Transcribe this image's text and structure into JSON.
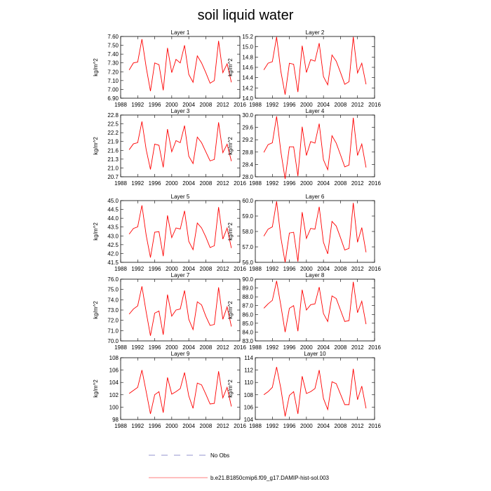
{
  "figure": {
    "title": "soil liquid water"
  },
  "legend": {
    "no_obs_label": "No Obs",
    "model_label": "b.e21.B1850cmip6.f09_g17.DAMIP-hist-sol.003",
    "model_color": "#ff0000",
    "no_obs_color": "#7070c0"
  },
  "chart_data": [
    {
      "type": "line",
      "title": "Layer 1",
      "xlabel": "",
      "ylabel": "kg/m^2",
      "xlim": [
        1988,
        2016
      ],
      "ylim": [
        6.9,
        7.6
      ],
      "xticks": [
        1988,
        1992,
        1996,
        2000,
        2004,
        2008,
        2012,
        2016
      ],
      "yticks": [
        "6.90",
        "7.00",
        "7.10",
        "7.20",
        "7.30",
        "7.40",
        "7.50",
        "7.60"
      ],
      "series": [
        {
          "color": "#ff0000",
          "x": [
            1990,
            1991,
            1992,
            1993,
            1994,
            1995,
            1996,
            1997,
            1998,
            1999,
            2000,
            2001,
            2002,
            2003,
            2004,
            2005,
            2006,
            2007,
            2008,
            2009,
            2010,
            2011,
            2012,
            2013,
            2014
          ],
          "values": [
            7.22,
            7.3,
            7.31,
            7.57,
            7.25,
            6.98,
            7.3,
            7.28,
            6.99,
            7.47,
            7.19,
            7.34,
            7.3,
            7.5,
            7.17,
            7.08,
            7.38,
            7.3,
            7.19,
            7.07,
            7.1,
            7.55,
            7.19,
            7.29,
            7.08
          ]
        }
      ]
    },
    {
      "type": "line",
      "title": "Layer 2",
      "xlabel": "",
      "ylabel": "kg/m^2",
      "xlim": [
        1988,
        2016
      ],
      "ylim": [
        14.0,
        15.2
      ],
      "xticks": [
        1988,
        1992,
        1996,
        2000,
        2004,
        2008,
        2012,
        2016
      ],
      "yticks": [
        "14.0",
        "14.2",
        "14.4",
        "14.6",
        "14.8",
        "15.0",
        "15.2"
      ],
      "series": [
        {
          "color": "#ff0000",
          "x": [
            1990,
            1991,
            1992,
            1993,
            1994,
            1995,
            1996,
            1997,
            1998,
            1999,
            2000,
            2001,
            2002,
            2003,
            2004,
            2005,
            2006,
            2007,
            2008,
            2009,
            2010,
            2011,
            2012,
            2013,
            2014
          ],
          "values": [
            14.55,
            14.68,
            14.71,
            15.19,
            14.52,
            14.07,
            14.68,
            14.66,
            14.12,
            15.02,
            14.5,
            14.75,
            14.72,
            15.07,
            14.42,
            14.26,
            14.84,
            14.72,
            14.5,
            14.27,
            14.32,
            15.19,
            14.49,
            14.68,
            14.27
          ]
        }
      ]
    },
    {
      "type": "line",
      "title": "Layer 3",
      "xlabel": "",
      "ylabel": "kg/m^2",
      "xlim": [
        1988,
        2016
      ],
      "ylim": [
        20.7,
        22.8
      ],
      "xticks": [
        1988,
        1992,
        1996,
        2000,
        2004,
        2008,
        2012,
        2016
      ],
      "yticks": [
        "20.7",
        "21.0",
        "21.3",
        "21.6",
        "21.9",
        "22.2",
        "22.5",
        "22.8"
      ],
      "series": [
        {
          "color": "#ff0000",
          "x": [
            1990,
            1991,
            1992,
            1993,
            1994,
            1995,
            1996,
            1997,
            1998,
            1999,
            2000,
            2001,
            2002,
            2003,
            2004,
            2005,
            2006,
            2007,
            2008,
            2009,
            2010,
            2011,
            2012,
            2013,
            2014
          ],
          "values": [
            21.62,
            21.82,
            21.86,
            22.58,
            21.62,
            20.95,
            21.81,
            21.77,
            21.02,
            22.32,
            21.55,
            21.93,
            21.86,
            22.44,
            21.4,
            21.15,
            22.05,
            21.86,
            21.55,
            21.24,
            21.29,
            22.55,
            21.52,
            21.81,
            21.23
          ]
        }
      ]
    },
    {
      "type": "line",
      "title": "Layer 4",
      "xlabel": "",
      "ylabel": "kg/m^2",
      "xlim": [
        1988,
        2016
      ],
      "ylim": [
        28.0,
        30.0
      ],
      "xticks": [
        1988,
        1992,
        1996,
        2000,
        2004,
        2008,
        2012,
        2016
      ],
      "yticks": [
        "28.0",
        "28.4",
        "28.8",
        "29.2",
        "29.6",
        "30.0"
      ],
      "series": [
        {
          "color": "#ff0000",
          "x": [
            1990,
            1991,
            1992,
            1993,
            1994,
            1995,
            1996,
            1997,
            1998,
            1999,
            2000,
            2001,
            2002,
            2003,
            2004,
            2005,
            2006,
            2007,
            2008,
            2009,
            2010,
            2011,
            2012,
            2013,
            2014
          ],
          "values": [
            28.79,
            29.04,
            29.1,
            29.96,
            28.81,
            27.93,
            28.97,
            28.97,
            28.02,
            29.62,
            28.69,
            29.14,
            29.09,
            29.72,
            28.55,
            28.23,
            29.33,
            29.09,
            28.71,
            28.32,
            28.38,
            29.91,
            28.69,
            29.06,
            28.3
          ]
        }
      ]
    },
    {
      "type": "line",
      "title": "Layer 5",
      "xlabel": "",
      "ylabel": "kg/m^2",
      "xlim": [
        1988,
        2016
      ],
      "ylim": [
        41.5,
        45.0
      ],
      "xticks": [
        1988,
        1992,
        1996,
        2000,
        2004,
        2008,
        2012,
        2016
      ],
      "yticks": [
        "41.5",
        "42.0",
        "42.5",
        "43.0",
        "43.5",
        "44.0",
        "44.5",
        "45.0"
      ],
      "series": [
        {
          "color": "#ff0000",
          "x": [
            1990,
            1991,
            1992,
            1993,
            1994,
            1995,
            1996,
            1997,
            1998,
            1999,
            2000,
            2001,
            2002,
            2003,
            2004,
            2005,
            2006,
            2007,
            2008,
            2009,
            2010,
            2011,
            2012,
            2013,
            2014
          ],
          "values": [
            43.1,
            43.42,
            43.51,
            44.73,
            43.03,
            41.77,
            43.21,
            43.24,
            41.85,
            44.16,
            42.9,
            43.45,
            43.39,
            44.42,
            42.69,
            42.22,
            43.73,
            43.45,
            42.94,
            42.34,
            42.44,
            44.63,
            42.82,
            43.44,
            42.31
          ]
        }
      ]
    },
    {
      "type": "line",
      "title": "Layer 6",
      "xlabel": "",
      "ylabel": "kg/m^2",
      "xlim": [
        1988,
        2016
      ],
      "ylim": [
        56.0,
        60.0
      ],
      "xticks": [
        1988,
        1992,
        1996,
        2000,
        2004,
        2008,
        2012,
        2016
      ],
      "yticks": [
        "56.0",
        "57.0",
        "58.0",
        "59.0",
        "60.0"
      ],
      "series": [
        {
          "color": "#ff0000",
          "x": [
            1990,
            1991,
            1992,
            1993,
            1994,
            1995,
            1996,
            1997,
            1998,
            1999,
            2000,
            2001,
            2002,
            2003,
            2004,
            2005,
            2006,
            2007,
            2008,
            2009,
            2010,
            2011,
            2012,
            2013,
            2014
          ],
          "values": [
            57.7,
            58.15,
            58.3,
            59.95,
            57.6,
            56.0,
            57.9,
            57.95,
            56.05,
            59.25,
            57.55,
            58.2,
            58.15,
            59.6,
            57.3,
            56.55,
            58.65,
            58.35,
            57.6,
            56.8,
            56.9,
            59.85,
            57.3,
            58.25,
            56.65
          ]
        }
      ]
    },
    {
      "type": "line",
      "title": "Layer 7",
      "xlabel": "",
      "ylabel": "kg/m^2",
      "xlim": [
        1988,
        2016
      ],
      "ylim": [
        70.0,
        76.0
      ],
      "xticks": [
        1988,
        1992,
        1996,
        2000,
        2004,
        2008,
        2012,
        2016
      ],
      "yticks": [
        "70.0",
        "71.0",
        "72.0",
        "73.0",
        "74.0",
        "75.0",
        "76.0"
      ],
      "series": [
        {
          "color": "#ff0000",
          "x": [
            1990,
            1991,
            1992,
            1993,
            1994,
            1995,
            1996,
            1997,
            1998,
            1999,
            2000,
            2001,
            2002,
            2003,
            2004,
            2005,
            2006,
            2007,
            2008,
            2009,
            2010,
            2011,
            2012,
            2013,
            2014
          ],
          "values": [
            72.6,
            73.1,
            73.4,
            75.3,
            72.8,
            70.5,
            72.7,
            72.9,
            70.6,
            74.5,
            72.4,
            73.0,
            73.1,
            74.9,
            72.1,
            71.1,
            73.8,
            73.5,
            72.4,
            71.5,
            71.6,
            75.2,
            72.1,
            73.3,
            71.4
          ]
        }
      ]
    },
    {
      "type": "line",
      "title": "Layer 8",
      "xlabel": "",
      "ylabel": "kg/m^2",
      "xlim": [
        1988,
        2016
      ],
      "ylim": [
        83.0,
        90.0
      ],
      "xticks": [
        1988,
        1992,
        1996,
        2000,
        2004,
        2008,
        2012,
        2016
      ],
      "yticks": [
        "83.0",
        "84.0",
        "85.0",
        "86.0",
        "87.0",
        "88.0",
        "89.0",
        "90.0"
      ],
      "series": [
        {
          "color": "#ff0000",
          "x": [
            1990,
            1991,
            1992,
            1993,
            1994,
            1995,
            1996,
            1997,
            1998,
            1999,
            2000,
            2001,
            2002,
            2003,
            2004,
            2005,
            2006,
            2007,
            2008,
            2009,
            2010,
            2011,
            2012,
            2013,
            2014
          ],
          "values": [
            86.7,
            87.2,
            87.6,
            89.8,
            87.0,
            84.0,
            86.7,
            87.0,
            84.1,
            88.8,
            86.5,
            87.1,
            87.2,
            89.1,
            86.1,
            85.2,
            88.1,
            87.8,
            86.5,
            85.2,
            85.3,
            89.7,
            86.2,
            87.5,
            84.9
          ]
        }
      ]
    },
    {
      "type": "line",
      "title": "Layer 9",
      "xlabel": "",
      "ylabel": "kg/m^2",
      "xlim": [
        1988,
        2016
      ],
      "ylim": [
        98,
        108
      ],
      "xticks": [
        1988,
        1992,
        1996,
        2000,
        2004,
        2008,
        2012,
        2016
      ],
      "yticks": [
        "98",
        "100",
        "102",
        "104",
        "106",
        "108"
      ],
      "series": [
        {
          "color": "#ff0000",
          "x": [
            1990,
            1991,
            1992,
            1993,
            1994,
            1995,
            1996,
            1997,
            1998,
            1999,
            2000,
            2001,
            2002,
            2003,
            2004,
            2005,
            2006,
            2007,
            2008,
            2009,
            2010,
            2011,
            2012,
            2013,
            2014
          ],
          "values": [
            102.2,
            102.7,
            103.2,
            106.0,
            102.5,
            98.9,
            102.0,
            102.5,
            99.1,
            104.8,
            102.1,
            102.5,
            103.0,
            105.6,
            101.8,
            99.8,
            103.9,
            103.6,
            102.1,
            100.5,
            100.6,
            105.8,
            101.5,
            103.2,
            100.1
          ]
        }
      ]
    },
    {
      "type": "line",
      "title": "Layer 10",
      "xlabel": "",
      "ylabel": "kg/m^2",
      "xlim": [
        1988,
        2016
      ],
      "ylim": [
        104,
        114
      ],
      "xticks": [
        1988,
        1992,
        1996,
        2000,
        2004,
        2008,
        2012,
        2016
      ],
      "yticks": [
        "104",
        "106",
        "108",
        "110",
        "112",
        "114"
      ],
      "series": [
        {
          "color": "#ff0000",
          "x": [
            1990,
            1991,
            1992,
            1993,
            1994,
            1995,
            1996,
            1997,
            1998,
            1999,
            2000,
            2001,
            2002,
            2003,
            2004,
            2005,
            2006,
            2007,
            2008,
            2009,
            2010,
            2011,
            2012,
            2013,
            2014
          ],
          "values": [
            108.0,
            108.5,
            109.2,
            112.5,
            109.0,
            104.5,
            107.9,
            108.5,
            104.9,
            111.0,
            108.2,
            108.5,
            109.0,
            112.0,
            107.4,
            105.6,
            110.1,
            109.8,
            108.1,
            106.4,
            106.4,
            112.2,
            107.2,
            109.4,
            105.8
          ]
        }
      ]
    }
  ]
}
